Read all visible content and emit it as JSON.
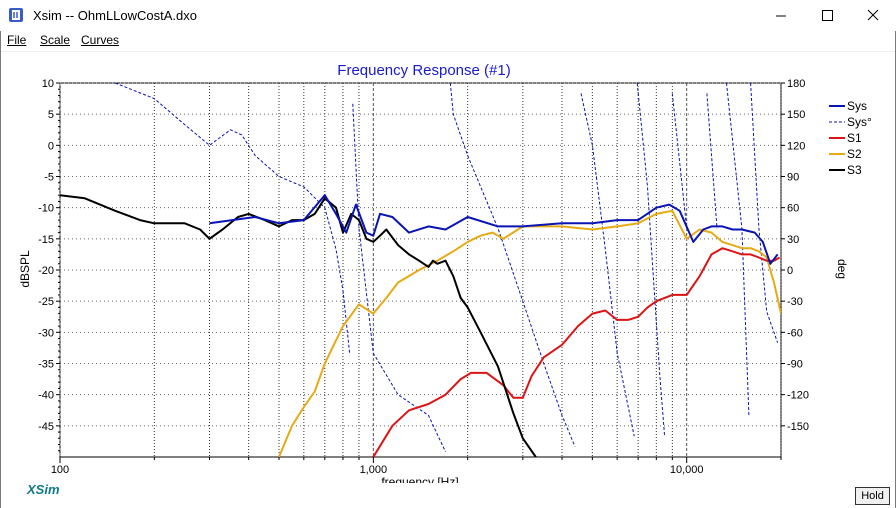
{
  "window": {
    "title": "Xsim -- OhmLLowCostA.dxo",
    "minimize_icon": "minimize-icon",
    "maximize_icon": "maximize-icon",
    "close_icon": "close-icon"
  },
  "menu": {
    "file": "File",
    "scale": "Scale",
    "curves": "Curves"
  },
  "footer": {
    "brand": "XSim",
    "hold_label": "Hold"
  },
  "colors": {
    "sys": "#0a14b4",
    "s1": "#dc1414",
    "s2": "#e6aa14",
    "s3": "#000000",
    "title": "#1a1ad0"
  },
  "chart_data": {
    "type": "line",
    "title": "Frequency Response (#1)",
    "xlabel": "frequency [Hz]",
    "ylabel": "dBSPL",
    "y2label": "deg",
    "x_scale": "log",
    "xlim": [
      100,
      20000
    ],
    "ylim": [
      -50,
      10
    ],
    "y2lim": [
      -180,
      180
    ],
    "x_tick_labels": [
      "100",
      "1,000",
      "10,000"
    ],
    "y_ticks": [
      10,
      5,
      0,
      -5,
      -10,
      -15,
      -20,
      -25,
      -30,
      -35,
      -40,
      -45
    ],
    "y2_ticks": [
      180,
      150,
      120,
      90,
      60,
      30,
      0,
      -30,
      -60,
      -90,
      -120,
      -150
    ],
    "grid": true,
    "legend_position": "right",
    "series": [
      {
        "name": "Sys",
        "axis": "left",
        "style": "solid",
        "color": "#0a14b4",
        "x": [
          300,
          420,
          500,
          600,
          700,
          760,
          820,
          880,
          950,
          1000,
          1050,
          1150,
          1300,
          1500,
          1700,
          2000,
          2500,
          3000,
          4000,
          5000,
          6000,
          7000,
          8000,
          8800,
          9500,
          10500,
          11300,
          12000,
          13000,
          14000,
          15000,
          16500,
          17500,
          18500,
          19500
        ],
        "y": [
          -12.5,
          -11.5,
          -12.5,
          -12.0,
          -8.0,
          -11.0,
          -14.0,
          -9.5,
          -14.0,
          -14.5,
          -11.0,
          -11.5,
          -14.0,
          -13.0,
          -13.5,
          -11.5,
          -13.0,
          -13.0,
          -12.5,
          -12.5,
          -12.0,
          -12.0,
          -10.0,
          -9.5,
          -10.5,
          -15.5,
          -13.5,
          -13.0,
          -13.0,
          -13.5,
          -13.5,
          -14.0,
          -15.5,
          -19.0,
          -17.5
        ]
      },
      {
        "name": "Sys°",
        "axis": "right",
        "style": "dashed",
        "color": "#0a14b4",
        "x": [
          150,
          200,
          250,
          300,
          350,
          380,
          420,
          500,
          600,
          700,
          760,
          800,
          840,
          860,
          900,
          1000,
          1200,
          1500,
          1700,
          1760,
          1800,
          2000,
          2500,
          3000,
          3500,
          4000,
          4400,
          4600,
          5000,
          5500,
          6000,
          6800,
          6950,
          7500,
          7800,
          8200,
          8500,
          9000,
          10000,
          11500,
          11600,
          12500,
          13300,
          13400,
          15000,
          15800,
          16000,
          17000,
          18000,
          19500
        ],
        "y": [
          180,
          165,
          140,
          120,
          135,
          130,
          110,
          90,
          80,
          60,
          20,
          -20,
          -80,
          160,
          40,
          -80,
          -120,
          -140,
          -175,
          180,
          150,
          110,
          40,
          -30,
          -90,
          -140,
          -170,
          170,
          120,
          20,
          -80,
          -160,
          180,
          80,
          0,
          -100,
          -160,
          170,
          40,
          -160,
          170,
          40,
          -160,
          180,
          40,
          -140,
          180,
          40,
          -40,
          -70
        ]
      },
      {
        "name": "S1",
        "axis": "left",
        "style": "solid",
        "color": "#dc1414",
        "x": [
          1000,
          1150,
          1300,
          1500,
          1700,
          1900,
          2050,
          2300,
          2600,
          2800,
          3000,
          3200,
          3500,
          4000,
          4500,
          5000,
          5500,
          6000,
          6500,
          7000,
          7500,
          8000,
          9000,
          10000,
          11000,
          12000,
          13000,
          14000,
          15000,
          16000,
          17000,
          18000,
          19000,
          19800
        ],
        "y": [
          -50.0,
          -45.0,
          -42.5,
          -41.5,
          -40.0,
          -37.5,
          -36.5,
          -36.5,
          -38.5,
          -40.5,
          -40.5,
          -37.0,
          -34.0,
          -32.0,
          -29.0,
          -27.0,
          -26.5,
          -28.0,
          -28.0,
          -27.5,
          -26.0,
          -25.0,
          -24.0,
          -24.0,
          -21.0,
          -17.5,
          -16.5,
          -17.0,
          -17.5,
          -17.5,
          -18.0,
          -18.5,
          -18.5,
          -18.0
        ]
      },
      {
        "name": "S2",
        "axis": "left",
        "style": "solid",
        "color": "#e6aa14",
        "x": [
          500,
          550,
          600,
          650,
          700,
          800,
          900,
          1000,
          1100,
          1200,
          1400,
          1600,
          1800,
          2000,
          2200,
          2400,
          2600,
          3000,
          4000,
          5000,
          6000,
          7000,
          8000,
          9000,
          10000,
          11000,
          12000,
          13000,
          14000,
          15000,
          16000,
          17000,
          18000,
          19000,
          20000
        ],
        "y": [
          -50.0,
          -45.0,
          -42.0,
          -39.5,
          -35.0,
          -29.0,
          -25.5,
          -27.0,
          -24.5,
          -22.0,
          -20.0,
          -18.5,
          -17.0,
          -15.5,
          -14.5,
          -14.0,
          -15.0,
          -13.0,
          -13.0,
          -13.5,
          -13.0,
          -12.5,
          -11.0,
          -10.5,
          -15.0,
          -13.5,
          -14.0,
          -15.5,
          -16.0,
          -16.5,
          -16.5,
          -17.0,
          -18.0,
          -22.0,
          -27.0
        ]
      },
      {
        "name": "S3",
        "axis": "left",
        "style": "solid",
        "color": "#000000",
        "x": [
          100,
          120,
          150,
          180,
          200,
          250,
          280,
          300,
          330,
          370,
          400,
          450,
          500,
          550,
          600,
          650,
          700,
          760,
          800,
          850,
          900,
          950,
          1000,
          1050,
          1100,
          1200,
          1300,
          1400,
          1500,
          1550,
          1600,
          1700,
          1800,
          1900,
          2000,
          2200,
          2500,
          2800,
          3000,
          3300
        ],
        "y": [
          -8.0,
          -8.5,
          -10.5,
          -12.0,
          -12.5,
          -12.5,
          -13.5,
          -15.0,
          -13.5,
          -11.5,
          -11.0,
          -12.0,
          -13.0,
          -12.0,
          -12.0,
          -11.0,
          -8.5,
          -10.0,
          -14.0,
          -11.0,
          -12.0,
          -15.0,
          -15.5,
          -14.5,
          -13.5,
          -16.0,
          -17.5,
          -18.5,
          -19.5,
          -18.5,
          -19.0,
          -18.5,
          -21.0,
          -24.5,
          -26.0,
          -30.0,
          -35.5,
          -43.0,
          -47.0,
          -50.0
        ]
      }
    ]
  }
}
